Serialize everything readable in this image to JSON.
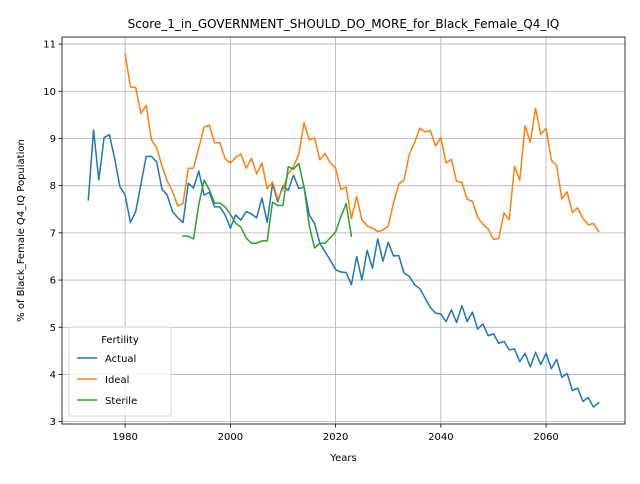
{
  "chart_data": {
    "type": "line",
    "title": "Score_1_in_GOVERNMENT_SHOULD_DO_MORE_for_Black_Female_Q4_IQ",
    "xlabel": "Years",
    "ylabel": "% of Black_Female Q4_IQ Population",
    "xlim": [
      1968,
      2075
    ],
    "ylim": [
      2.95,
      11.15
    ],
    "x_ticks": [
      1980,
      2000,
      2020,
      2040,
      2060
    ],
    "y_ticks": [
      3,
      4,
      5,
      6,
      7,
      8,
      9,
      10,
      11
    ],
    "x_tick_labels": [
      "1980",
      "2000",
      "2020",
      "2040",
      "2060"
    ],
    "y_tick_labels": [
      "3",
      "4",
      "5",
      "6",
      "7",
      "8",
      "9",
      "10",
      "11"
    ],
    "grid": true,
    "legend": {
      "title": "Fertility",
      "placement": "lower-left"
    },
    "series": [
      {
        "name": "Actual",
        "color": "#1f77b4",
        "x": [
          1973,
          1974,
          1975,
          1976,
          1977,
          1978,
          1979,
          1980,
          1981,
          1982,
          1983,
          1984,
          1985,
          1986,
          1987,
          1988,
          1989,
          1990,
          1991,
          1992,
          1993,
          1994,
          1995,
          1996,
          1997,
          1998,
          1999,
          2000,
          2001,
          2002,
          2003,
          2004,
          2005,
          2006,
          2007,
          2008,
          2009,
          2010,
          2011,
          2012,
          2013,
          2014,
          2015,
          2016,
          2017,
          2018,
          2019,
          2020,
          2021,
          2022,
          2023,
          2024,
          2025,
          2026,
          2027,
          2028,
          2029,
          2030,
          2031,
          2032,
          2033,
          2034,
          2035,
          2036,
          2037,
          2038,
          2039,
          2040,
          2041,
          2042,
          2043,
          2044,
          2045,
          2046,
          2047,
          2048,
          2049,
          2050,
          2051,
          2052,
          2053,
          2054,
          2055,
          2056,
          2057,
          2058,
          2059,
          2060,
          2061,
          2062,
          2063,
          2064,
          2065,
          2066,
          2067,
          2068,
          2069,
          2070
        ],
        "values": [
          7.7,
          9.18,
          8.12,
          9.02,
          9.08,
          8.58,
          7.98,
          7.8,
          7.22,
          7.45,
          8.03,
          8.62,
          8.62,
          8.5,
          7.93,
          7.8,
          7.45,
          7.32,
          7.22,
          8.05,
          7.95,
          8.31,
          7.8,
          7.86,
          7.55,
          7.55,
          7.38,
          7.1,
          7.38,
          7.27,
          7.45,
          7.4,
          7.32,
          7.74,
          7.22,
          8.04,
          7.66,
          8.0,
          7.9,
          8.22,
          7.94,
          7.97,
          7.38,
          7.2,
          6.78,
          6.6,
          6.42,
          6.22,
          6.17,
          6.16,
          5.9,
          6.5,
          6.0,
          6.63,
          6.25,
          6.87,
          6.4,
          6.8,
          6.51,
          6.52,
          6.15,
          6.08,
          5.9,
          5.82,
          5.62,
          5.42,
          5.3,
          5.28,
          5.12,
          5.37,
          5.1,
          5.46,
          5.12,
          5.32,
          4.96,
          5.07,
          4.82,
          4.86,
          4.66,
          4.7,
          4.52,
          4.54,
          4.27,
          4.45,
          4.16,
          4.47,
          4.21,
          4.45,
          4.12,
          4.32,
          3.94,
          4.02,
          3.66,
          3.71,
          3.43,
          3.51,
          3.31,
          3.4
        ]
      },
      {
        "name": "Ideal",
        "color": "#ff7f0e",
        "x": [
          1980,
          1981,
          1982,
          1983,
          1984,
          1985,
          1986,
          1987,
          1988,
          1989,
          1990,
          1991,
          1992,
          1993,
          1994,
          1995,
          1996,
          1997,
          1998,
          1999,
          2000,
          2001,
          2002,
          2003,
          2004,
          2005,
          2006,
          2007,
          2008,
          2009,
          2010,
          2011,
          2012,
          2013,
          2014,
          2015,
          2016,
          2017,
          2018,
          2019,
          2020,
          2021,
          2022,
          2023,
          2024,
          2025,
          2026,
          2027,
          2028,
          2029,
          2030,
          2031,
          2032,
          2033,
          2034,
          2035,
          2036,
          2037,
          2038,
          2039,
          2040,
          2041,
          2042,
          2043,
          2044,
          2045,
          2046,
          2047,
          2048,
          2049,
          2050,
          2051,
          2052,
          2053,
          2054,
          2055,
          2056,
          2057,
          2058,
          2059,
          2060,
          2061,
          2062,
          2063,
          2064,
          2065,
          2066,
          2067,
          2068,
          2069,
          2070
        ],
        "values": [
          10.8,
          10.09,
          10.08,
          9.53,
          9.7,
          8.97,
          8.8,
          8.42,
          8.1,
          7.88,
          7.57,
          7.62,
          8.37,
          8.37,
          8.8,
          9.24,
          9.28,
          8.91,
          8.91,
          8.57,
          8.48,
          8.6,
          8.67,
          8.37,
          8.58,
          8.25,
          8.48,
          7.93,
          8.08,
          7.72,
          7.93,
          8.26,
          8.4,
          8.67,
          9.33,
          8.97,
          9.01,
          8.55,
          8.68,
          8.48,
          8.37,
          7.92,
          7.97,
          7.3,
          7.77,
          7.28,
          7.15,
          7.1,
          7.03,
          7.06,
          7.14,
          7.63,
          8.03,
          8.12,
          8.66,
          8.91,
          9.22,
          9.14,
          9.17,
          8.84,
          9.02,
          8.48,
          8.56,
          8.09,
          8.07,
          7.71,
          7.67,
          7.33,
          7.18,
          7.08,
          6.86,
          6.88,
          7.42,
          7.28,
          8.41,
          8.12,
          9.27,
          8.92,
          9.64,
          9.09,
          9.22,
          8.54,
          8.43,
          7.72,
          7.87,
          7.43,
          7.53,
          7.31,
          7.17,
          7.2,
          7.03
        ]
      },
      {
        "name": "Sterile",
        "color": "#2ca02c",
        "x": [
          1991,
          1992,
          1993,
          1994,
          1995,
          1996,
          1997,
          1998,
          1999,
          2000,
          2001,
          2002,
          2003,
          2004,
          2005,
          2006,
          2007,
          2008,
          2009,
          2010,
          2011,
          2012,
          2013,
          2014,
          2015,
          2016,
          2017,
          2018,
          2019,
          2020,
          2021,
          2022,
          2023
        ],
        "values": [
          6.93,
          6.93,
          6.87,
          7.6,
          8.12,
          7.91,
          7.63,
          7.63,
          7.55,
          7.4,
          7.2,
          7.12,
          6.89,
          6.78,
          6.78,
          6.83,
          6.83,
          7.65,
          7.58,
          7.58,
          8.4,
          8.35,
          8.47,
          7.97,
          7.15,
          6.68,
          6.78,
          6.78,
          6.9,
          7.02,
          7.34,
          7.62,
          6.93
        ]
      }
    ]
  }
}
